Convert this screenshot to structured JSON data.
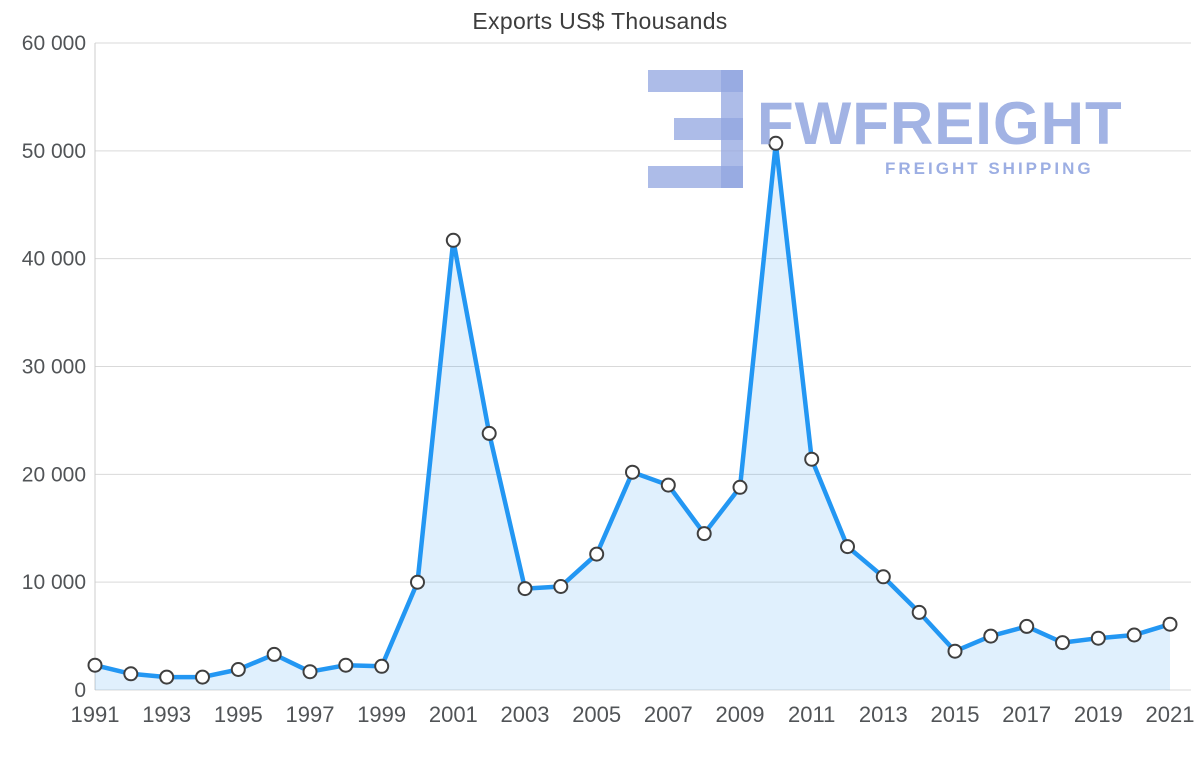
{
  "page": {
    "background": "#ffffff"
  },
  "watermark": {
    "brand": "FWFREIGHT",
    "tagline": "FREIGHT SHIPPING",
    "color": "#92a6e0"
  },
  "chart_data": {
    "type": "area",
    "title": "Exports US$ Thousands",
    "series_name": "Exports US$ Thousands",
    "x": [
      1991,
      1992,
      1993,
      1994,
      1995,
      1996,
      1997,
      1998,
      1999,
      2000,
      2001,
      2002,
      2003,
      2004,
      2005,
      2006,
      2007,
      2008,
      2009,
      2010,
      2011,
      2012,
      2013,
      2014,
      2015,
      2016,
      2017,
      2018,
      2019,
      2020,
      2021
    ],
    "values": [
      2300,
      1500,
      1200,
      1200,
      1900,
      3300,
      1700,
      2300,
      2200,
      10000,
      41700,
      23800,
      9400,
      9600,
      12600,
      20200,
      19000,
      14500,
      18800,
      50700,
      21400,
      13300,
      10500,
      7200,
      3600,
      5000,
      5900,
      4400,
      4800,
      5100,
      6100
    ],
    "ylim": [
      0,
      60000
    ],
    "ytick_step": 10000,
    "xtick_step": 2,
    "grid": true,
    "legend": "none",
    "colors": {
      "line": "#2397f3",
      "fill": "rgba(33,150,243,0.14)",
      "marker_fill": "#ffffff",
      "marker_stroke": "#3f3f3f",
      "grid": "#d9d9d9",
      "axis": "#cccccc",
      "tick_label": "#515457",
      "title": "#3d3d3d"
    }
  }
}
